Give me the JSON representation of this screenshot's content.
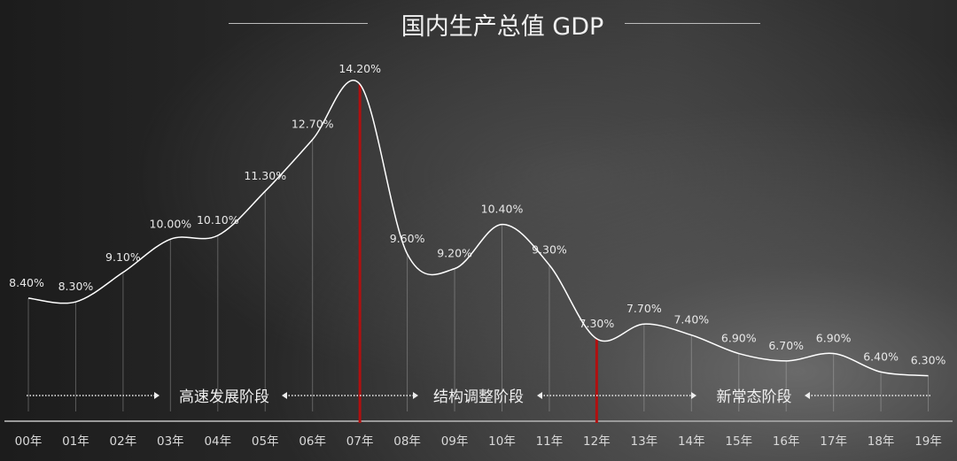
{
  "chart_data": {
    "type": "line",
    "title": "国内生产总值 GDP",
    "categories": [
      "00年",
      "01年",
      "02年",
      "03年",
      "04年",
      "05年",
      "06年",
      "07年",
      "08年",
      "09年",
      "10年",
      "11年",
      "12年",
      "13年",
      "14年",
      "15年",
      "16年",
      "17年",
      "18年",
      "19年"
    ],
    "values": [
      8.4,
      8.3,
      9.1,
      10.0,
      10.1,
      11.3,
      12.7,
      14.2,
      9.6,
      9.2,
      10.4,
      9.3,
      7.3,
      7.7,
      7.4,
      6.9,
      6.7,
      6.9,
      6.4,
      6.3
    ],
    "data_labels": [
      "8.40%",
      "8.30%",
      "9.10%",
      "10.00%",
      "10.10%",
      "11.30%",
      "12.70%",
      "14.20%",
      "9.60%",
      "9.20%",
      "10.40%",
      "9.30%",
      "7.30%",
      "7.70%",
      "7.40%",
      "6.90%",
      "6.70%",
      "6.90%",
      "6.40%",
      "6.30%"
    ],
    "highlight_markers": [
      "07年",
      "12年"
    ],
    "phases": [
      {
        "label": "高速发展阶段",
        "from": "00年",
        "to": "07年"
      },
      {
        "label": "结构调整阶段",
        "from": "07年",
        "to": "12年"
      },
      {
        "label": "新常态阶段",
        "from": "12年",
        "to": "19年"
      }
    ],
    "grid": false,
    "colors": {
      "line": "#ffffff",
      "marker": "#b01010",
      "text": "#e8e8e8"
    }
  }
}
